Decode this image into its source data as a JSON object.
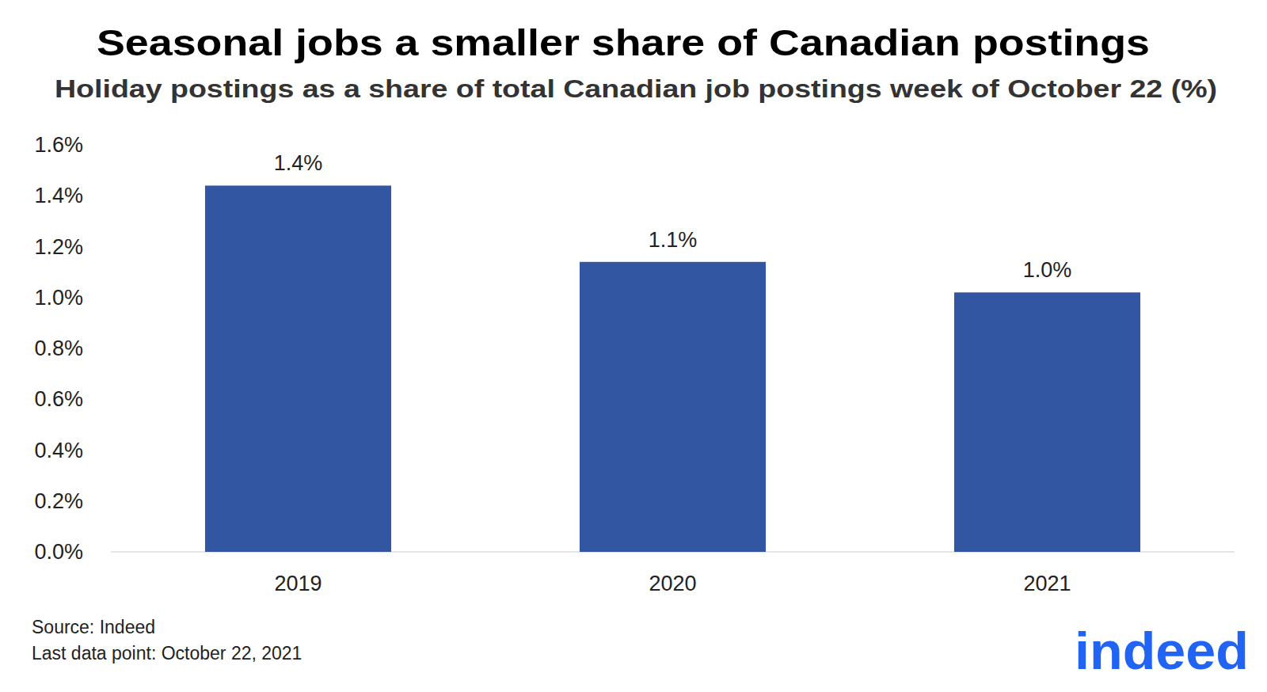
{
  "chart_data": {
    "type": "bar",
    "title": "Seasonal jobs a smaller share of Canadian postings",
    "subtitle": "Holiday postings as a share of total Canadian job postings week of October 22 (%)",
    "categories": [
      "2019",
      "2020",
      "2021"
    ],
    "values": [
      1.44,
      1.14,
      1.02
    ],
    "value_labels": [
      "1.4%",
      "1.1%",
      "1.0%"
    ],
    "data_labels": true,
    "color": "#3356a2",
    "ylim": [
      0,
      1.6
    ],
    "yticks": [
      {
        "value": 0,
        "label": "0.0%"
      },
      {
        "value": 0.2,
        "label": "0.2%"
      },
      {
        "value": 0.4,
        "label": "0.4%"
      },
      {
        "value": 0.6,
        "label": "0.6%"
      },
      {
        "value": 0.8,
        "label": "0.8%"
      },
      {
        "value": 1.0,
        "label": "1.0%"
      },
      {
        "value": 1.2,
        "label": "1.2%"
      },
      {
        "value": 1.4,
        "label": "1.4%"
      },
      {
        "value": 1.6,
        "label": "1.6%"
      }
    ],
    "grid": false,
    "annotations": [
      "Source: Indeed",
      "Last data point: October 22, 2021",
      "indeed"
    ]
  }
}
